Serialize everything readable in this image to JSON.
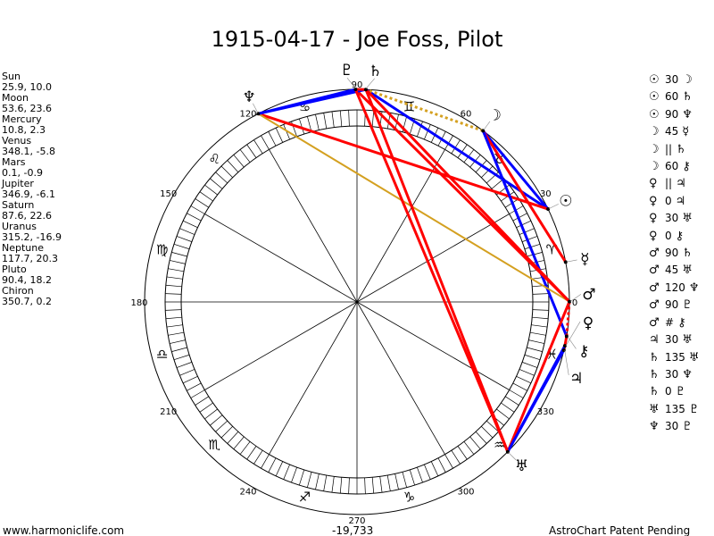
{
  "title": "1915-04-17 - Joe Foss, Pilot",
  "planets": [
    {
      "name": "Sun",
      "glyph": "☉",
      "coords": "25.9, 10.0",
      "lon": 25.9,
      "decl": 10.0
    },
    {
      "name": "Moon",
      "glyph": "☽",
      "coords": "53.6, 23.6",
      "lon": 53.6,
      "decl": 23.6
    },
    {
      "name": "Mercury",
      "glyph": "☿",
      "coords": "10.8, 2.3",
      "lon": 10.8,
      "decl": 2.3
    },
    {
      "name": "Venus",
      "glyph": "♀",
      "coords": "348.1, -5.8",
      "lon": 348.1,
      "decl": -5.8
    },
    {
      "name": "Mars",
      "glyph": "♂",
      "coords": "0.1, -0.9",
      "lon": 0.1,
      "decl": -0.9
    },
    {
      "name": "Jupiter",
      "glyph": "♃",
      "coords": "346.9, -6.1",
      "lon": 346.9,
      "decl": -6.1
    },
    {
      "name": "Saturn",
      "glyph": "♄",
      "coords": "87.6, 22.6",
      "lon": 87.6,
      "decl": 22.6
    },
    {
      "name": "Uranus",
      "glyph": "♅",
      "coords": "315.2, -16.9",
      "lon": 315.2,
      "decl": -16.9
    },
    {
      "name": "Neptune",
      "glyph": "♆",
      "coords": "117.7, 20.3",
      "lon": 117.7,
      "decl": 20.3
    },
    {
      "name": "Pluto",
      "glyph": "♇",
      "coords": "90.4, 18.2",
      "lon": 90.4,
      "decl": 18.2
    },
    {
      "name": "Chiron",
      "glyph": "⚷",
      "coords": "350.7, 0.2",
      "lon": 350.7,
      "decl": 0.2
    }
  ],
  "aspects": [
    {
      "p1": "Sun",
      "a": "☉",
      "type": "30",
      "b": "☽",
      "p2": "Moon"
    },
    {
      "p1": "Sun",
      "a": "☉",
      "type": "60",
      "b": "♄",
      "p2": "Saturn"
    },
    {
      "p1": "Sun",
      "a": "☉",
      "type": "90",
      "b": "♆",
      "p2": "Neptune"
    },
    {
      "p1": "Moon",
      "a": "☽",
      "type": "45",
      "b": "☿",
      "p2": "Mercury"
    },
    {
      "p1": "Moon",
      "a": "☽",
      "type": "||",
      "b": "♄",
      "p2": "Saturn"
    },
    {
      "p1": "Moon",
      "a": "☽",
      "type": "60",
      "b": "⚷",
      "p2": "Chiron"
    },
    {
      "p1": "Venus",
      "a": "♀",
      "type": "||",
      "b": "♃",
      "p2": "Jupiter"
    },
    {
      "p1": "Venus",
      "a": "♀",
      "type": "0",
      "b": "♃",
      "p2": "Jupiter"
    },
    {
      "p1": "Venus",
      "a": "♀",
      "type": "30",
      "b": "♅",
      "p2": "Uranus"
    },
    {
      "p1": "Venus",
      "a": "♀",
      "type": "0",
      "b": "⚷",
      "p2": "Chiron"
    },
    {
      "p1": "Mars",
      "a": "♂",
      "type": "90",
      "b": "♄",
      "p2": "Saturn"
    },
    {
      "p1": "Mars",
      "a": "♂",
      "type": "45",
      "b": "♅",
      "p2": "Uranus"
    },
    {
      "p1": "Mars",
      "a": "♂",
      "type": "120",
      "b": "♆",
      "p2": "Neptune"
    },
    {
      "p1": "Mars",
      "a": "♂",
      "type": "90",
      "b": "♇",
      "p2": "Pluto"
    },
    {
      "p1": "Mars",
      "a": "♂",
      "type": "#",
      "b": "⚷",
      "p2": "Chiron"
    },
    {
      "p1": "Jupiter",
      "a": "♃",
      "type": "30",
      "b": "♅",
      "p2": "Uranus"
    },
    {
      "p1": "Saturn",
      "a": "♄",
      "type": "135",
      "b": "♅",
      "p2": "Uranus"
    },
    {
      "p1": "Saturn",
      "a": "♄",
      "type": "30",
      "b": "♆",
      "p2": "Neptune"
    },
    {
      "p1": "Saturn",
      "a": "♄",
      "type": "0",
      "b": "♇",
      "p2": "Pluto"
    },
    {
      "p1": "Uranus",
      "a": "♅",
      "type": "135",
      "b": "♇",
      "p2": "Pluto"
    },
    {
      "p1": "Neptune",
      "a": "♆",
      "type": "30",
      "b": "♇",
      "p2": "Pluto"
    }
  ],
  "degree_labels": [
    "0",
    "30",
    "60",
    "90",
    "120",
    "150",
    "180",
    "210",
    "240",
    "270",
    "300",
    "330"
  ],
  "signs": [
    "♈",
    "♉",
    "♊",
    "♋",
    "♌",
    "♍",
    "♎",
    "♏",
    "♐",
    "♑",
    "♒",
    "♓"
  ],
  "aspect_colors": {
    "0": "#ff0000",
    "30": "#0000ff",
    "45": "#ff0000",
    "60": "#0000ff",
    "90": "#ff0000",
    "120": "#d4a020",
    "135": "#ff0000",
    "||": "#d4a020",
    "#": "#ff0000"
  },
  "footer": {
    "site": "www.harmoniclife.com",
    "number": "-19,733",
    "patent": "AstroChart Patent Pending"
  }
}
